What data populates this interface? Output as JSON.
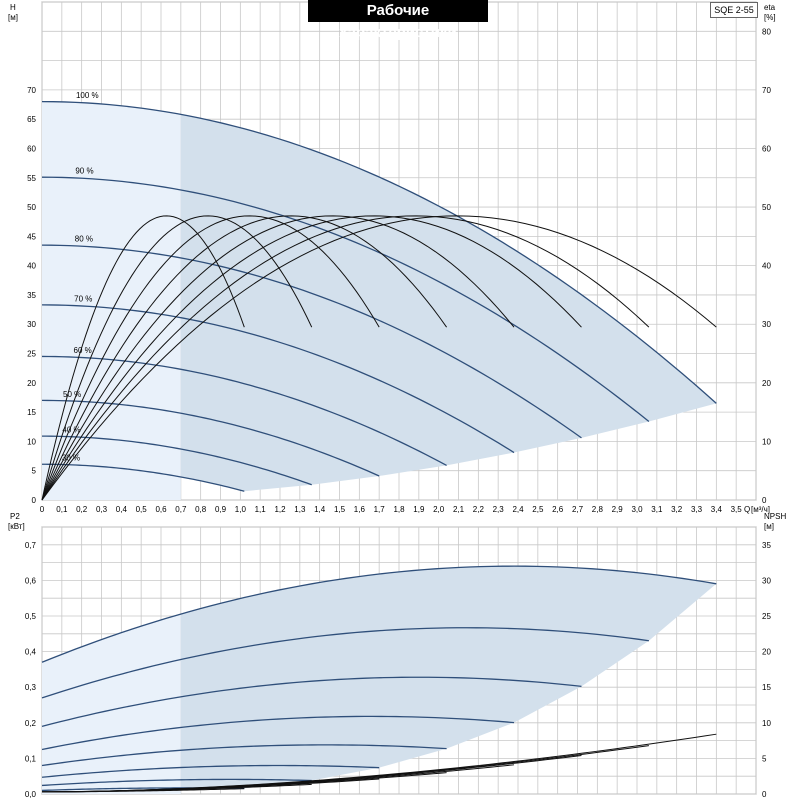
{
  "title": "Рабочие характеристики",
  "model": "SQE 2-55",
  "chart_data": [
    {
      "type": "line",
      "name": "head-chart",
      "ylabel_left": "H",
      "ylabel_left_unit": "[м]",
      "ylabel_right": "eta",
      "ylabel_right_unit": "[%]",
      "xlabel": "Q",
      "xlabel_unit": "[м³/ч]",
      "xlim": [
        0,
        3.6
      ],
      "ylim": [
        0,
        85
      ],
      "ylim_right_ticks": [
        0,
        10,
        20,
        30,
        40,
        50,
        60,
        70,
        80
      ],
      "x_ticks": [
        "0",
        "0,1",
        "0,2",
        "0,3",
        "0,4",
        "0,5",
        "0,6",
        "0,7",
        "0,8",
        "0,9",
        "1,0",
        "1,1",
        "1,2",
        "1,3",
        "1,4",
        "1,5",
        "1,6",
        "1,7",
        "1,8",
        "1,9",
        "2,0",
        "2,1",
        "2,2",
        "2,3",
        "2,4",
        "2,5",
        "2,6",
        "2,7",
        "2,8",
        "2,9",
        "3,0",
        "3,1",
        "3,2",
        "3,3",
        "3,4",
        "3,5"
      ],
      "y_ticks_left": [
        0,
        5,
        10,
        15,
        20,
        25,
        30,
        35,
        40,
        45,
        50,
        55,
        60,
        65,
        70
      ],
      "grid": true,
      "speed_curves": [
        {
          "label": "100 %",
          "shut_off_head": 68,
          "q_max": 3.4,
          "h_end": 16.5
        },
        {
          "label": "90 %",
          "shut_off_head": 55.1,
          "q_max": 3.06,
          "h_end": 13.4
        },
        {
          "label": "80 %",
          "shut_off_head": 43.5,
          "q_max": 2.72,
          "h_end": 10.6
        },
        {
          "label": "70 %",
          "shut_off_head": 33.3,
          "q_max": 2.38,
          "h_end": 8.1
        },
        {
          "label": "60 %",
          "shut_off_head": 24.5,
          "q_max": 2.04,
          "h_end": 5.9
        },
        {
          "label": "50 %",
          "shut_off_head": 17.0,
          "q_max": 1.7,
          "h_end": 4.1
        },
        {
          "label": "40 %",
          "shut_off_head": 10.9,
          "q_max": 1.36,
          "h_end": 2.6
        },
        {
          "label": "30 %",
          "shut_off_head": 6.1,
          "q_max": 1.02,
          "h_end": 1.5
        }
      ],
      "efficiency_curves": [
        {
          "q_max": 3.4,
          "eta_peak": 48.5,
          "eta_end": 29.5
        },
        {
          "q_max": 3.06,
          "eta_peak": 48.5,
          "eta_end": 29.5
        },
        {
          "q_max": 2.72,
          "eta_peak": 48.5,
          "eta_end": 29.5
        },
        {
          "q_max": 2.38,
          "eta_peak": 48.5,
          "eta_end": 29.5
        },
        {
          "q_max": 2.04,
          "eta_peak": 48.5,
          "eta_end": 29.5
        },
        {
          "q_max": 1.7,
          "eta_peak": 48.5,
          "eta_end": 29.5
        },
        {
          "q_max": 1.36,
          "eta_peak": 48.5,
          "eta_end": 29.5
        },
        {
          "q_max": 1.02,
          "eta_peak": 48.5,
          "eta_end": 29.5
        }
      ],
      "min_flow_q": 0.7
    },
    {
      "type": "line",
      "name": "power-chart",
      "ylabel_left": "P2",
      "ylabel_left_unit": "[кВт]",
      "ylabel_right": "NPSH",
      "ylabel_right_unit": "[м]",
      "xlim": [
        0,
        3.6
      ],
      "ylim": [
        0,
        0.75
      ],
      "y_ticks_left": [
        "0,0",
        "0,1",
        "0,2",
        "0,3",
        "0,4",
        "0,5",
        "0,6",
        "0,7"
      ],
      "y_ticks_left_values": [
        0,
        0.1,
        0.2,
        0.3,
        0.4,
        0.5,
        0.6,
        0.7
      ],
      "y_ticks_right": [
        0,
        5,
        10,
        15,
        20,
        25,
        30,
        35
      ],
      "ylim_right": [
        0,
        37.5
      ],
      "power_curves": [
        {
          "p_start": 0.37,
          "p_peak": 0.64,
          "q_peak": 2.38,
          "q_max": 3.4,
          "p_end": 0.525
        },
        {
          "p_start": 0.27,
          "p_peak": 0.467,
          "q_peak": 2.14,
          "q_max": 3.06,
          "p_end": 0.385
        },
        {
          "p_start": 0.19,
          "p_peak": 0.328,
          "q_peak": 1.9,
          "q_max": 2.72,
          "p_end": 0.275
        },
        {
          "p_start": 0.125,
          "p_peak": 0.218,
          "q_peak": 1.66,
          "q_max": 2.38,
          "p_end": 0.182
        },
        {
          "p_start": 0.08,
          "p_peak": 0.138,
          "q_peak": 1.43,
          "q_max": 2.04,
          "p_end": 0.115
        },
        {
          "p_start": 0.047,
          "p_peak": 0.08,
          "q_peak": 1.19,
          "q_max": 1.7,
          "p_end": 0.067
        },
        {
          "p_start": 0.024,
          "p_peak": 0.041,
          "q_peak": 0.95,
          "q_max": 1.36,
          "p_end": 0.034
        },
        {
          "p_start": 0.01,
          "p_peak": 0.017,
          "q_peak": 0.71,
          "q_max": 1.02,
          "p_end": 0.015
        }
      ],
      "npsh_curves": [
        {
          "q_max": 3.4,
          "npsh_end": 8.4
        },
        {
          "q_max": 3.06,
          "npsh_end": 6.8
        },
        {
          "q_max": 2.72,
          "npsh_end": 5.4
        },
        {
          "q_max": 2.38,
          "npsh_end": 4.1
        },
        {
          "q_max": 2.04,
          "npsh_end": 3.0
        },
        {
          "q_max": 1.7,
          "npsh_end": 2.1
        },
        {
          "q_max": 1.36,
          "npsh_end": 1.35
        },
        {
          "q_max": 1.02,
          "npsh_end": 0.75
        }
      ],
      "min_flow_q": 0.7
    }
  ]
}
